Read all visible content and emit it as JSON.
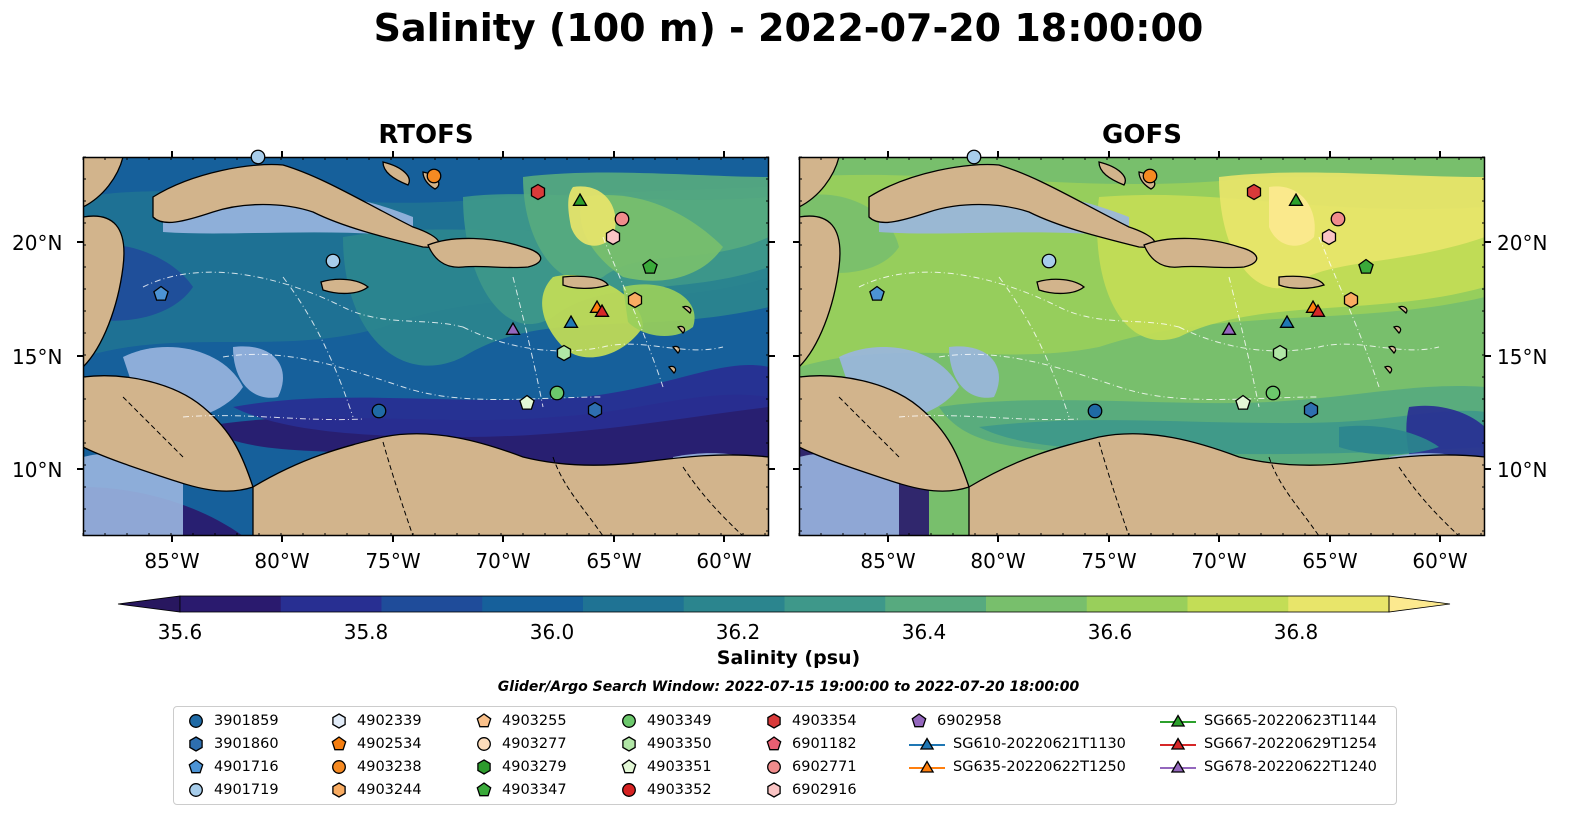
{
  "title": "Salinity (100 m) - 2022-07-20 18:00:00",
  "panels": [
    {
      "title": "RTOFS"
    },
    {
      "title": "GOFS"
    }
  ],
  "axes": {
    "lat_ticks": [
      "20°N",
      "15°N",
      "10°N"
    ],
    "lon_ticks": [
      "85°W",
      "80°W",
      "75°W",
      "70°W",
      "65°W",
      "60°W"
    ]
  },
  "colorbar": {
    "label": "Salinity (psu)",
    "ticks": [
      "35.6",
      "35.8",
      "36.0",
      "36.2",
      "36.4",
      "36.6",
      "36.8"
    ],
    "colors": [
      "#2a1a6e",
      "#282f92",
      "#1f4c9a",
      "#16609b",
      "#1f7394",
      "#2b858e",
      "#3e988a",
      "#57aa7f",
      "#78bf6c",
      "#99cf5b",
      "#c3dd56",
      "#e8e56a"
    ],
    "extend_low": "#28175f",
    "extend_high": "#fce98f"
  },
  "search_window": "Glider/Argo Search Window: 2022-07-15 19:00:00 to 2022-07-20 18:00:00",
  "legend": [
    {
      "label": "3901859",
      "marker": "circle",
      "color": "#1f6aa5"
    },
    {
      "label": "3901860",
      "marker": "hexagon",
      "color": "#2e6fb0"
    },
    {
      "label": "4901716",
      "marker": "pentagon",
      "color": "#4c93d4"
    },
    {
      "label": "4901719",
      "marker": "circle",
      "color": "#a7cdeb"
    },
    {
      "label": "4902339",
      "marker": "hexagon",
      "color": "#e2ecf8"
    },
    {
      "label": "4902534",
      "marker": "pentagon",
      "color": "#f57e10"
    },
    {
      "label": "4903238",
      "marker": "circle",
      "color": "#f58a22"
    },
    {
      "label": "4903244",
      "marker": "hexagon",
      "color": "#f9ac62"
    },
    {
      "label": "4903255",
      "marker": "pentagon",
      "color": "#f9c08a"
    },
    {
      "label": "4903277",
      "marker": "circle",
      "color": "#fddcbb"
    },
    {
      "label": "4903279",
      "marker": "hexagon",
      "color": "#2d9b2d"
    },
    {
      "label": "4903347",
      "marker": "pentagon",
      "color": "#3aaa3a"
    },
    {
      "label": "4903349",
      "marker": "circle",
      "color": "#6cc86c"
    },
    {
      "label": "4903350",
      "marker": "hexagon",
      "color": "#b1e6a6"
    },
    {
      "label": "4903351",
      "marker": "pentagon",
      "color": "#e3f8d6"
    },
    {
      "label": "4903352",
      "marker": "circle",
      "color": "#d62222"
    },
    {
      "label": "4903354",
      "marker": "hexagon",
      "color": "#d93a3a"
    },
    {
      "label": "6901182",
      "marker": "pentagon",
      "color": "#e85f72"
    },
    {
      "label": "6902771",
      "marker": "circle",
      "color": "#f08c8c"
    },
    {
      "label": "6902916",
      "marker": "hexagon",
      "color": "#fac4c4"
    },
    {
      "label": "6902958",
      "marker": "pentagon",
      "color": "#9467bd"
    },
    {
      "label": "SG610-20220621T1130",
      "marker": "triangle-line",
      "color": "#1f77b4"
    },
    {
      "label": "SG635-20220622T1250",
      "marker": "triangle-line",
      "color": "#ff7f0e"
    },
    {
      "label": "SG665-20220623T1144",
      "marker": "triangle-line",
      "color": "#2ca02c"
    },
    {
      "label": "SG667-20220629T1254",
      "marker": "triangle-line",
      "color": "#d62728"
    },
    {
      "label": "SG678-20220622T1240",
      "marker": "triangle-line",
      "color": "#9467bd"
    }
  ],
  "colors": {
    "land": "#d2b48c",
    "shelf": "#9ab6e0",
    "ocean_deep_rtofs": "#16609b",
    "ocean_gofs": "#78bf6c"
  }
}
